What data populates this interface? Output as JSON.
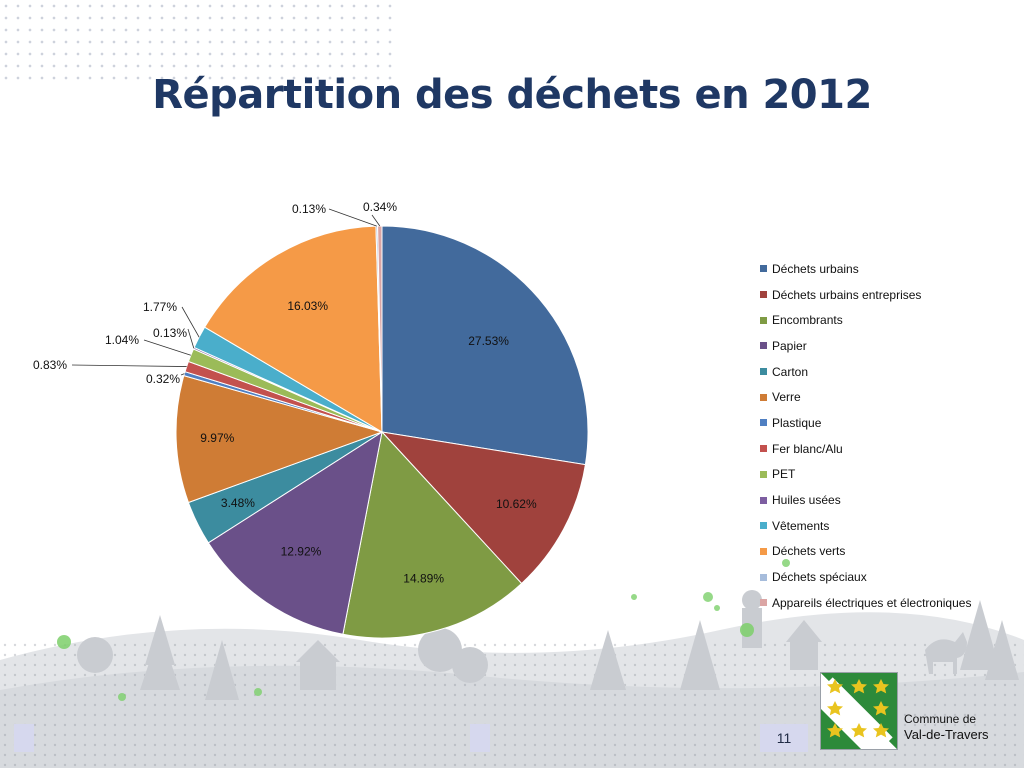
{
  "title": "Répartition des déchets en 2012",
  "page_number": "11",
  "logo": {
    "line1": "Commune de",
    "line2": "Val-de-Travers"
  },
  "chart_data": {
    "type": "pie",
    "title": "Répartition des déchets en 2012",
    "legend_position": "right",
    "slices": [
      {
        "label": "Déchets urbains",
        "value": 27.53,
        "display": "27.53%",
        "color": "#426a9c"
      },
      {
        "label": "Déchets urbains entreprises",
        "value": 10.62,
        "display": "10.62%",
        "color": "#a0423d"
      },
      {
        "label": "Encombrants",
        "value": 14.89,
        "display": "14.89%",
        "color": "#7f9b44"
      },
      {
        "label": "Papier",
        "value": 12.92,
        "display": "12.92%",
        "color": "#6a5089"
      },
      {
        "label": "Carton",
        "value": 3.48,
        "display": "3.48%",
        "color": "#3c8c9f"
      },
      {
        "label": "Verre",
        "value": 9.97,
        "display": "9.97%",
        "color": "#cf7c35"
      },
      {
        "label": "Plastique",
        "value": 0.32,
        "display": "0.32%",
        "color": "#4f7fc2"
      },
      {
        "label": "Fer blanc/Alu",
        "value": 0.83,
        "display": "0.83%",
        "color": "#c3514e"
      },
      {
        "label": "PET",
        "value": 1.04,
        "display": "1.04%",
        "color": "#9bbb58"
      },
      {
        "label": "Huiles usées",
        "value": 0.13,
        "display": "0.13%",
        "color": "#7d5ea1"
      },
      {
        "label": "Vêtements",
        "value": 1.77,
        "display": "1.77%",
        "color": "#4aaecb"
      },
      {
        "label": "Déchets verts",
        "value": 16.03,
        "display": "16.03%",
        "color": "#f59a47"
      },
      {
        "label": "Déchets spéciaux",
        "value": 0.13,
        "display": "0.13%",
        "color": "#a6bcdb"
      },
      {
        "label": "Appareils électriques et électroniques",
        "value": 0.34,
        "display": "0.34%",
        "color": "#dba5a4"
      }
    ]
  }
}
